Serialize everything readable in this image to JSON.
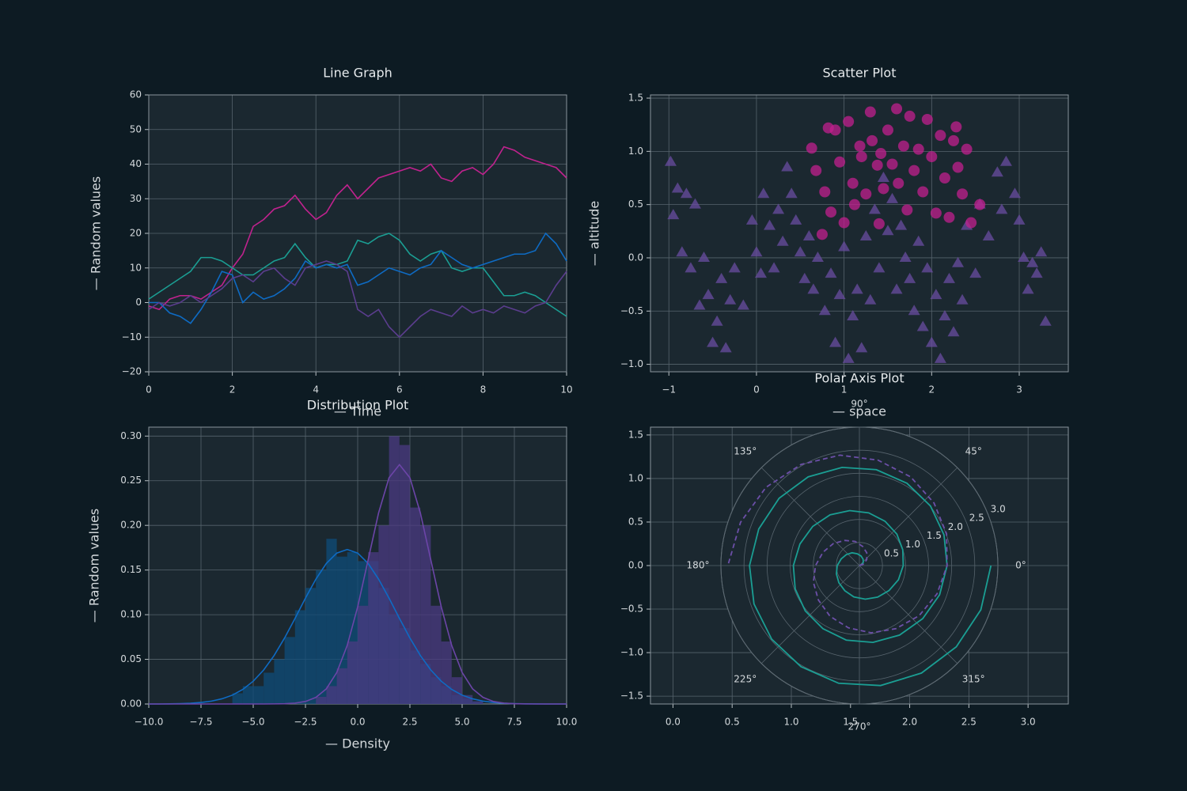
{
  "chart_data": [
    {
      "type": "line",
      "title": "Line Graph",
      "xlabel": "— Time",
      "ylabel": "— Random values",
      "xlim": [
        0,
        10
      ],
      "ylim": [
        -20,
        60
      ],
      "grid": true,
      "xticks": [
        0,
        2,
        4,
        6,
        8,
        10
      ],
      "yticks": [
        {
          "value": -20,
          "label": "−20"
        },
        {
          "value": -10,
          "label": "−10"
        },
        0,
        10,
        20,
        30,
        40,
        50,
        60
      ],
      "x": [
        0,
        0.25,
        0.5,
        0.75,
        1,
        1.25,
        1.5,
        1.75,
        2,
        2.25,
        2.5,
        2.75,
        3,
        3.25,
        3.5,
        3.75,
        4,
        4.25,
        4.5,
        4.75,
        5,
        5.25,
        5.5,
        5.75,
        6,
        6.25,
        6.5,
        6.75,
        7,
        7.25,
        7.5,
        7.75,
        8,
        8.25,
        8.5,
        8.75,
        9,
        9.25,
        9.5,
        9.75,
        10
      ],
      "series": [
        {
          "color": "#c0228e",
          "values": [
            -1,
            -2,
            1,
            2,
            2,
            1,
            3,
            5,
            10,
            14,
            22,
            24,
            27,
            28,
            31,
            27,
            24,
            26,
            31,
            34,
            30,
            33,
            36,
            37,
            38,
            39,
            38,
            40,
            36,
            35,
            38,
            39,
            37,
            40,
            45,
            44,
            42,
            41,
            40,
            39,
            36
          ]
        },
        {
          "color": "#1b9e93",
          "values": [
            1,
            3,
            5,
            7,
            9,
            13,
            13,
            12,
            10,
            8,
            8,
            10,
            12,
            13,
            17,
            13,
            10,
            11,
            11,
            12,
            18,
            17,
            19,
            20,
            18,
            14,
            12,
            14,
            15,
            10,
            9,
            10,
            10,
            6,
            2,
            2,
            3,
            2,
            0,
            -2,
            -4
          ]
        },
        {
          "color": "#0e6bc4",
          "values": [
            0,
            0,
            -3,
            -4,
            -6,
            -2,
            3,
            9,
            8,
            0,
            3,
            1,
            2,
            4,
            7,
            12,
            10,
            11,
            10,
            11,
            5,
            6,
            8,
            10,
            9,
            8,
            10,
            11,
            15,
            13,
            11,
            10,
            11,
            12,
            13,
            14,
            14,
            15,
            20,
            17,
            12
          ]
        },
        {
          "color": "#5b3d8e",
          "values": [
            -2,
            0,
            -1,
            0,
            2,
            0,
            2,
            4,
            7,
            8,
            6,
            9,
            10,
            7,
            5,
            10,
            11,
            12,
            11,
            9,
            -2,
            -4,
            -2,
            -7,
            -10,
            -7,
            -4,
            -2,
            -3,
            -4,
            -1,
            -3,
            -2,
            -3,
            -1,
            -2,
            -3,
            -1,
            0,
            5,
            9
          ]
        }
      ]
    },
    {
      "type": "scatter",
      "title": "Scatter Plot",
      "xlabel": "— space",
      "ylabel": "— altitude",
      "xlim": [
        -1.21,
        3.56
      ],
      "ylim": [
        -1.07,
        1.53
      ],
      "grid": true,
      "xticks": [
        {
          "value": -1,
          "label": "−1"
        },
        0,
        1,
        2,
        3
      ],
      "yticks": [
        {
          "value": -1,
          "label": "−1.0"
        },
        {
          "value": -0.5,
          "label": "−0.5"
        },
        {
          "value": 0,
          "label": "0.0"
        },
        0.5,
        {
          "value": 1,
          "label": "1.0"
        },
        1.5
      ],
      "series": [
        {
          "marker": "triangle",
          "color": "#6a4ca0",
          "x": [
            -0.98,
            -0.95,
            -0.9,
            -0.85,
            -0.8,
            -0.75,
            -0.7,
            -0.65,
            -0.6,
            -0.55,
            -0.5,
            -0.45,
            -0.4,
            -0.35,
            -0.3,
            -0.25,
            -0.15,
            -0.05,
            0.0,
            0.05,
            0.08,
            0.15,
            0.2,
            0.25,
            0.3,
            0.35,
            0.4,
            0.45,
            0.5,
            0.55,
            0.6,
            0.65,
            0.7,
            0.78,
            0.85,
            0.9,
            0.95,
            1.0,
            1.05,
            1.1,
            1.15,
            1.2,
            1.25,
            1.3,
            1.35,
            1.4,
            1.45,
            1.5,
            1.55,
            1.6,
            1.65,
            1.7,
            1.75,
            1.8,
            1.85,
            1.9,
            1.95,
            2.0,
            2.05,
            2.1,
            2.15,
            2.2,
            2.25,
            2.3,
            2.35,
            2.4,
            2.5,
            2.55,
            2.65,
            2.75,
            2.8,
            2.85,
            2.95,
            3.0,
            3.05,
            3.1,
            3.15,
            3.2,
            3.25,
            3.3
          ],
          "values": [
            0.9,
            0.4,
            0.65,
            0.05,
            0.6,
            -0.1,
            0.5,
            -0.45,
            0.0,
            -0.35,
            -0.8,
            -0.6,
            -0.2,
            -0.85,
            -0.4,
            -0.1,
            -0.45,
            0.35,
            0.05,
            -0.15,
            0.6,
            0.3,
            -0.1,
            0.45,
            0.15,
            0.85,
            0.6,
            0.35,
            0.05,
            -0.2,
            0.2,
            -0.3,
            0.0,
            -0.5,
            -0.15,
            -0.8,
            -0.35,
            0.1,
            -0.95,
            -0.55,
            -0.3,
            -0.85,
            0.2,
            -0.4,
            0.45,
            -0.1,
            0.75,
            0.25,
            0.55,
            -0.3,
            0.3,
            0.0,
            -0.2,
            -0.5,
            0.15,
            -0.65,
            -0.1,
            -0.8,
            -0.35,
            -0.95,
            -0.55,
            -0.2,
            -0.7,
            -0.05,
            -0.4,
            0.3,
            -0.15,
            0.5,
            0.2,
            0.8,
            0.45,
            0.9,
            0.6,
            0.35,
            0.0,
            -0.3,
            -0.05,
            -0.15,
            0.05,
            -0.6
          ]
        },
        {
          "marker": "circle",
          "color": "#c21f8e",
          "x": [
            0.63,
            0.68,
            0.78,
            0.85,
            0.9,
            0.95,
            1.0,
            1.05,
            1.1,
            1.12,
            1.18,
            1.2,
            1.25,
            1.3,
            1.32,
            1.38,
            1.42,
            1.45,
            1.5,
            1.55,
            1.6,
            1.62,
            1.68,
            1.72,
            1.75,
            1.8,
            1.85,
            1.9,
            1.95,
            2.0,
            2.05,
            2.1,
            2.15,
            2.2,
            2.25,
            2.3,
            2.35,
            2.4,
            2.45,
            2.55,
            0.75,
            1.4,
            2.28,
            0.82
          ],
          "values": [
            1.03,
            0.82,
            0.62,
            0.43,
            1.2,
            0.9,
            0.33,
            1.28,
            0.7,
            0.5,
            1.05,
            0.95,
            0.6,
            1.37,
            1.1,
            0.87,
            0.98,
            0.65,
            1.2,
            0.88,
            1.4,
            0.7,
            1.05,
            0.45,
            1.33,
            0.82,
            1.02,
            0.62,
            1.3,
            0.95,
            0.42,
            1.15,
            0.75,
            0.38,
            1.1,
            0.85,
            0.6,
            1.02,
            0.33,
            0.5,
            0.22,
            0.32,
            1.23,
            1.22
          ]
        }
      ]
    },
    {
      "type": "histogram",
      "title": "Distribution Plot",
      "xlabel": "— Density",
      "ylabel": "— Random values",
      "xlim": [
        -10,
        10
      ],
      "ylim": [
        0,
        0.31
      ],
      "grid": true,
      "xticks": [
        {
          "value": -10,
          "label": "−10.0"
        },
        {
          "value": -7.5,
          "label": "−7.5"
        },
        {
          "value": -5,
          "label": "−5.0"
        },
        {
          "value": -2.5,
          "label": "−2.5"
        },
        {
          "value": 0,
          "label": "0.0"
        },
        2.5,
        {
          "value": 5,
          "label": "5.0"
        },
        7.5,
        {
          "value": 10,
          "label": "10.0"
        }
      ],
      "yticks": [
        {
          "value": 0,
          "label": "0.00"
        },
        0.05,
        {
          "value": 0.1,
          "label": "0.10"
        },
        0.15,
        {
          "value": 0.2,
          "label": "0.20"
        },
        0.25,
        {
          "value": 0.3,
          "label": "0.30"
        }
      ],
      "bins": [
        -6,
        -5.5,
        -5,
        -4.5,
        -4,
        -3.5,
        -3,
        -2.5,
        -2,
        -1.5,
        -1,
        -0.5,
        0,
        0.5,
        1,
        1.5,
        2,
        2.5,
        3,
        3.5,
        4,
        4.5,
        5,
        5.5,
        6
      ],
      "x": [
        -10,
        -9.5,
        -9,
        -8.5,
        -8,
        -7.5,
        -7,
        -6.5,
        -6,
        -5.5,
        -5,
        -4.5,
        -4,
        -3.5,
        -3,
        -2.5,
        -2,
        -1.5,
        -1,
        -0.5,
        0,
        0.5,
        1,
        1.5,
        2,
        2.5,
        3,
        3.5,
        4,
        4.5,
        5,
        5.5,
        6,
        6.5,
        7,
        7.5,
        8,
        8.5,
        9,
        9.5,
        10
      ],
      "series": [
        {
          "color": "#0e6bc4",
          "bar_color": "#0f4c7a",
          "values": [
            0.012,
            0.02,
            0.02,
            0.035,
            0.05,
            0.075,
            0.105,
            0.13,
            0.15,
            0.185,
            0.165,
            0.17,
            0.16,
            0.16,
            0.13,
            0.1,
            0.085,
            0.06,
            0.045,
            0.03,
            0.02,
            0.01,
            0.006,
            0.003
          ],
          "kde": [
            0,
            0,
            0.0002,
            0.0004,
            0.0008,
            0.0017,
            0.0032,
            0.0058,
            0.0099,
            0.0163,
            0.0255,
            0.0381,
            0.0543,
            0.0739,
            0.0958,
            0.1186,
            0.1398,
            0.1574,
            0.169,
            0.173,
            0.169,
            0.1574,
            0.1398,
            0.1186,
            0.0958,
            0.0739,
            0.0543,
            0.0381,
            0.0255,
            0.0163,
            0.0099,
            0.0058,
            0.0032,
            0.0017,
            0.0008,
            0.0004,
            0.0002,
            0.0001,
            0,
            0,
            0
          ]
        },
        {
          "color": "#6c45a8",
          "bar_color": "#4b3a82",
          "values": [
            0,
            0,
            0,
            0,
            0,
            0,
            0,
            0,
            0.008,
            0.02,
            0.04,
            0.07,
            0.11,
            0.17,
            0.2,
            0.3,
            0.29,
            0.22,
            0.2,
            0.11,
            0.07,
            0.03,
            0.01,
            0.003
          ],
          "kde": [
            0,
            0,
            0,
            0,
            0,
            0,
            0,
            0,
            0,
            0,
            0,
            0,
            0.0001,
            0.0003,
            0.001,
            0.0028,
            0.0074,
            0.017,
            0.0353,
            0.0656,
            0.1088,
            0.1614,
            0.2139,
            0.2533,
            0.268,
            0.2533,
            0.2139,
            0.1614,
            0.1088,
            0.0656,
            0.0353,
            0.017,
            0.0074,
            0.0028,
            0.001,
            0.0003,
            0.0001,
            0,
            0,
            0,
            0
          ]
        }
      ]
    },
    {
      "type": "polar",
      "title": "Polar Axis Plot",
      "grid": true,
      "xlim": [
        -0.19,
        3.34
      ],
      "ylim": [
        -1.59,
        1.59
      ],
      "xticks": [
        {
          "value": 0,
          "label": "0.0"
        },
        0.5,
        {
          "value": 1,
          "label": "1.0"
        },
        1.5,
        {
          "value": 2,
          "label": "2.0"
        },
        2.5,
        {
          "value": 3,
          "label": "3.0"
        }
      ],
      "yticks": [
        {
          "value": -1.5,
          "label": "−1.5"
        },
        {
          "value": -1,
          "label": "−1.0"
        },
        {
          "value": -0.5,
          "label": "−0.5"
        },
        {
          "value": 0,
          "label": "0.0"
        },
        0.5,
        {
          "value": 1,
          "label": "1.0"
        },
        1.5
      ],
      "rlim": [
        0,
        3
      ],
      "rticks": [
        0.5,
        {
          "value": 1,
          "label": "1.0"
        },
        1.5,
        {
          "value": 2,
          "label": "2.0"
        },
        2.5,
        {
          "value": 3,
          "label": "3.0"
        }
      ],
      "thetaticks": [
        {
          "value": 0,
          "label": "0°"
        },
        {
          "value": 45,
          "label": "45°"
        },
        {
          "value": 90,
          "label": "90°"
        },
        {
          "value": 135,
          "label": "135°"
        },
        {
          "value": 180,
          "label": "180°"
        },
        {
          "value": 225,
          "label": "225°"
        },
        {
          "value": 270,
          "label": "270°"
        },
        {
          "value": 315,
          "label": "315°"
        }
      ],
      "series": [
        {
          "color": "#1b9e93",
          "dashed": false,
          "theta": [
            0,
            20,
            40,
            60,
            80,
            100,
            120,
            140,
            160,
            180,
            200,
            220,
            240,
            260,
            280,
            300,
            320,
            340,
            360,
            380,
            400,
            420,
            440,
            460,
            480,
            500,
            520,
            540,
            560,
            580,
            600,
            620,
            640,
            660,
            680,
            700,
            720,
            740,
            760,
            780,
            800,
            820,
            840,
            860,
            880,
            900,
            920,
            940,
            960,
            980,
            1000,
            1020,
            1040,
            1060,
            1080
          ],
          "values": [
            0,
            0.05,
            0.11,
            0.16,
            0.21,
            0.26,
            0.32,
            0.37,
            0.42,
            0.48,
            0.53,
            0.58,
            0.63,
            0.69,
            0.74,
            0.79,
            0.84,
            0.9,
            0.95,
            1.0,
            1.06,
            1.11,
            1.16,
            1.21,
            1.27,
            1.32,
            1.37,
            1.43,
            1.48,
            1.53,
            1.58,
            1.64,
            1.69,
            1.74,
            1.79,
            1.85,
            1.9,
            1.95,
            2.01,
            2.06,
            2.11,
            2.16,
            2.22,
            2.27,
            2.32,
            2.38,
            2.43,
            2.48,
            2.53,
            2.59,
            2.64,
            2.69,
            2.74,
            2.8,
            2.85
          ]
        },
        {
          "color": "#6c4fa8",
          "dashed": true,
          "theta": [
            0,
            20,
            40,
            60,
            80,
            100,
            120,
            140,
            160,
            180,
            200,
            220,
            240,
            260,
            280,
            300,
            320,
            340,
            360,
            380,
            400,
            420,
            440,
            460,
            480,
            500,
            520,
            540
          ],
          "values": [
            0,
            0.11,
            0.21,
            0.32,
            0.42,
            0.53,
            0.63,
            0.74,
            0.84,
            0.95,
            1.06,
            1.16,
            1.27,
            1.37,
            1.48,
            1.58,
            1.69,
            1.79,
            1.9,
            2.01,
            2.11,
            2.22,
            2.32,
            2.43,
            2.53,
            2.64,
            2.74,
            2.85
          ]
        }
      ]
    }
  ]
}
